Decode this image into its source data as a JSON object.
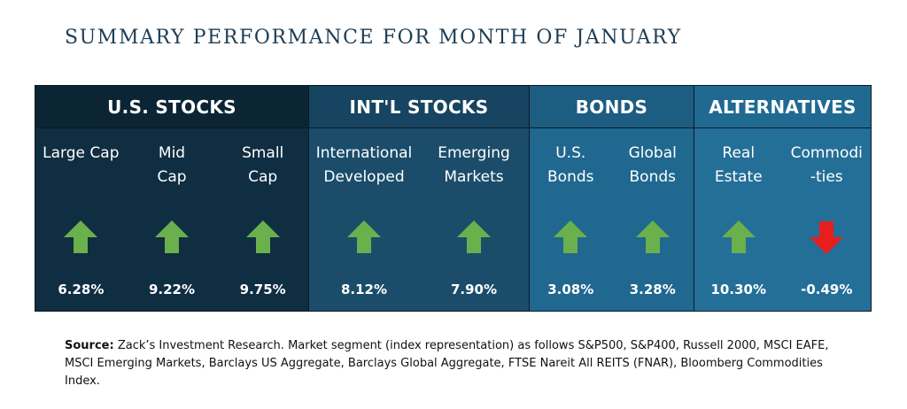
{
  "title": "SUMMARY PERFORMANCE FOR MONTH OF JANUARY",
  "colors": {
    "up": "#6ab04c",
    "down": "#e61e1e"
  },
  "sections": [
    {
      "header": "U.S. STOCKS",
      "columns": [
        {
          "label": "Large Cap",
          "value": "6.28%",
          "direction": "up"
        },
        {
          "label": "Mid\nCap",
          "value": "9.22%",
          "direction": "up"
        },
        {
          "label": "Small\nCap",
          "value": "9.75%",
          "direction": "up"
        }
      ]
    },
    {
      "header": "INT'L STOCKS",
      "columns": [
        {
          "label": "International\nDeveloped",
          "value": "8.12%",
          "direction": "up"
        },
        {
          "label": "Emerging\nMarkets",
          "value": "7.90%",
          "direction": "up"
        }
      ]
    },
    {
      "header": "BONDS",
      "columns": [
        {
          "label": "U.S.\nBonds",
          "value": "3.08%",
          "direction": "up"
        },
        {
          "label": "Global\nBonds",
          "value": "3.28%",
          "direction": "up"
        }
      ]
    },
    {
      "header": "ALTERNATIVES",
      "columns": [
        {
          "label": "Real\nEstate",
          "value": "10.30%",
          "direction": "up"
        },
        {
          "label": "Commodi\n-ties",
          "value": "-0.49%",
          "direction": "down"
        }
      ]
    }
  ],
  "source": {
    "label": "Source:",
    "text": " Zack’s Investment Research. Market segment (index representation) as follows S&P500, S&P400, Russell 2000, MSCI EAFE, MSCI Emerging Markets, Barclays US Aggregate, Barclays Global Aggregate, FTSE Nareit All REITS (FNAR), Bloomberg Commodities Index."
  }
}
